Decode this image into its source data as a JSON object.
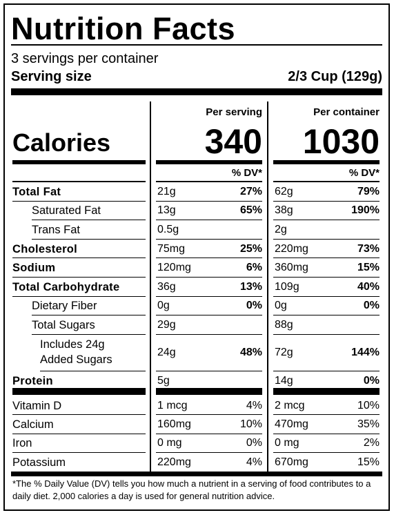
{
  "title": "Nutrition Facts",
  "servings": "3 servings per container",
  "serving_size_label": "Serving size",
  "serving_size": "2/3 Cup (129g)",
  "columns": [
    "Per serving",
    "Per container"
  ],
  "calories_label": "Calories",
  "calories": [
    "340",
    "1030"
  ],
  "dv_header": [
    "% DV*",
    "% DV*"
  ],
  "nutrients": [
    {
      "name": "Total Fat",
      "style": "bold",
      "serving": "21g",
      "serving_dv": "27%",
      "container": "62g",
      "container_dv": "79%"
    },
    {
      "name": "Saturated Fat",
      "style": "indent",
      "serving": "13g",
      "serving_dv": "65%",
      "container": "38g",
      "container_dv": "190%"
    },
    {
      "name": "Trans Fat",
      "style": "indent",
      "serving": "0.5g",
      "container": "2g"
    },
    {
      "name": "Cholesterol",
      "style": "bold",
      "serving": "75mg",
      "serving_dv": "25%",
      "container": "220mg",
      "container_dv": "73%"
    },
    {
      "name": "Sodium",
      "style": "bold",
      "serving": "120mg",
      "serving_dv": "6%",
      "container": "360mg",
      "container_dv": "15%"
    },
    {
      "name": "Total Carbohydrate",
      "style": "bold",
      "serving": "36g",
      "serving_dv": "13%",
      "container": "109g",
      "container_dv": "40%"
    },
    {
      "name": "Dietary Fiber",
      "style": "indent",
      "serving": "0g",
      "serving_dv": "0%",
      "container": "0g",
      "container_dv": "0%"
    },
    {
      "name": "Total Sugars",
      "style": "indent",
      "serving": "29g",
      "container": "88g"
    },
    {
      "name": "Includes 24g Added Sugars",
      "style": "indent2",
      "serving": "24g",
      "serving_dv": "48%",
      "container": "72g",
      "container_dv": "144%"
    },
    {
      "name": "Protein",
      "style": "bold",
      "serving": "5g",
      "container": "14g",
      "container_dv": "0%"
    }
  ],
  "vitamins": [
    {
      "name": "Vitamin D",
      "serving": "1 mcg",
      "serving_dv": "4%",
      "container": "2 mcg",
      "container_dv": "10%"
    },
    {
      "name": "Calcium",
      "serving": "160mg",
      "serving_dv": "10%",
      "container": "470mg",
      "container_dv": "35%"
    },
    {
      "name": "Iron",
      "serving": "0 mg",
      "serving_dv": "0%",
      "container": "0 mg",
      "container_dv": "2%"
    },
    {
      "name": "Potassium",
      "serving": "220mg",
      "serving_dv": "4%",
      "container": "670mg",
      "container_dv": "15%"
    }
  ],
  "footnote": "*The % Daily Value (DV) tells you how much a nutrient in a serving of food contributes to a daily diet. 2,000 calories a day is used for general nutrition advice."
}
